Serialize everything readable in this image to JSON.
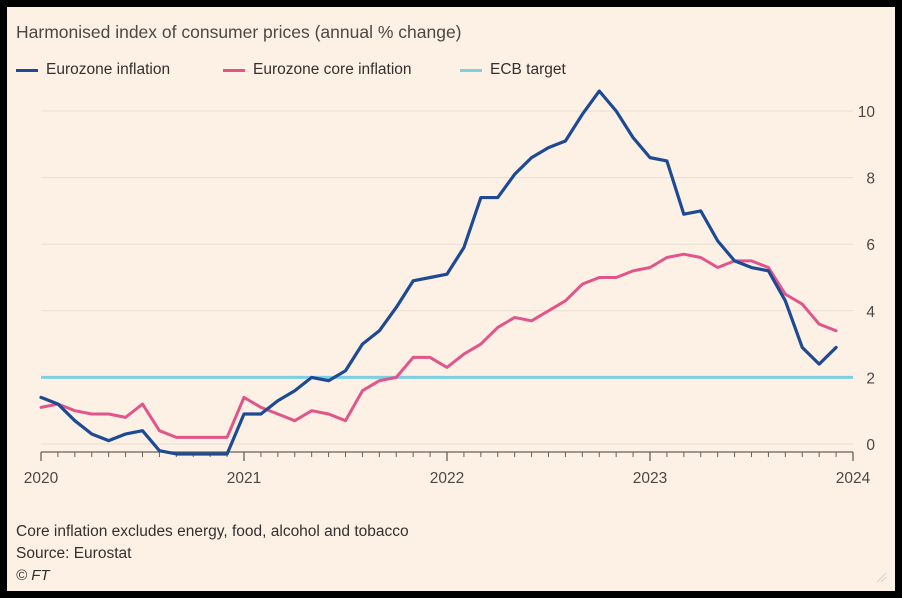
{
  "title": "Harmonised index of consumer prices (annual % change)",
  "footnote": "Core inflation excludes energy, food, alcohol and tobacco",
  "source": "Source: Eurostat",
  "credit": "© FT",
  "colors": {
    "background": "#fdf1e6",
    "grid": "#e9ddd2",
    "axis": "#66605c",
    "text": "#33302e"
  },
  "chart_data": {
    "type": "line",
    "title": "Harmonised index of consumer prices (annual % change)",
    "x_start": "2020-01",
    "x_ticks": [
      "2020",
      "2021",
      "2022",
      "2023",
      "2024"
    ],
    "xlim": [
      "2020-01",
      "2024-01"
    ],
    "y_ticks": [
      0,
      2,
      4,
      6,
      8,
      10
    ],
    "ylim": [
      -0.5,
      11
    ],
    "y_axis_position": "right",
    "grid": true,
    "legend": "top-left",
    "series": [
      {
        "name": "Eurozone inflation",
        "color": "#1d4a93",
        "values": [
          1.4,
          1.2,
          0.7,
          0.3,
          0.1,
          0.3,
          0.4,
          -0.2,
          -0.3,
          -0.3,
          -0.3,
          -0.3,
          0.9,
          0.9,
          1.3,
          1.6,
          2.0,
          1.9,
          2.2,
          3.0,
          3.4,
          4.1,
          4.9,
          5.0,
          5.1,
          5.9,
          7.4,
          7.4,
          8.1,
          8.6,
          8.9,
          9.1,
          9.9,
          10.6,
          10.0,
          9.2,
          8.6,
          8.5,
          6.9,
          7.0,
          6.1,
          5.5,
          5.3,
          5.2,
          4.3,
          2.9,
          2.4,
          2.9
        ]
      },
      {
        "name": "Eurozone core inflation",
        "color": "#e2558b",
        "values": [
          1.1,
          1.2,
          1.0,
          0.9,
          0.9,
          0.8,
          1.2,
          0.4,
          0.2,
          0.2,
          0.2,
          0.2,
          1.4,
          1.1,
          0.9,
          0.7,
          1.0,
          0.9,
          0.7,
          1.6,
          1.9,
          2.0,
          2.6,
          2.6,
          2.3,
          2.7,
          3.0,
          3.5,
          3.8,
          3.7,
          4.0,
          4.3,
          4.8,
          5.0,
          5.0,
          5.2,
          5.3,
          5.6,
          5.7,
          5.6,
          5.3,
          5.5,
          5.5,
          5.3,
          4.5,
          4.2,
          3.6,
          3.4
        ]
      },
      {
        "name": "ECB target",
        "color": "#7dd0e3",
        "values": [
          2,
          2
        ]
      }
    ]
  }
}
